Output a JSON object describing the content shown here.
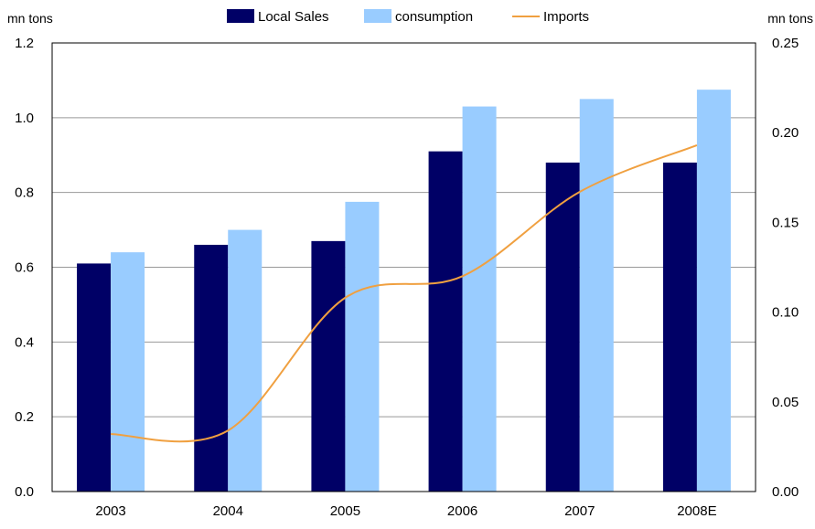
{
  "chart_data": {
    "type": "bar",
    "categories": [
      "2003",
      "2004",
      "2005",
      "2006",
      "2007",
      "2008E"
    ],
    "series": [
      {
        "name": "Local Sales",
        "type": "bar",
        "axis": "left",
        "color": "#000066",
        "values": [
          0.61,
          0.66,
          0.67,
          0.91,
          0.88,
          0.88
        ]
      },
      {
        "name": "consumption",
        "type": "bar",
        "axis": "left",
        "color": "#99ccff",
        "values": [
          0.64,
          0.7,
          0.775,
          1.03,
          1.05,
          1.075
        ]
      },
      {
        "name": "Imports",
        "type": "line",
        "axis": "right",
        "color": "#f0a040",
        "values": [
          0.032,
          0.034,
          0.108,
          0.12,
          0.167,
          0.193
        ]
      }
    ],
    "left_axis": {
      "label": "mn tons",
      "range": [
        0,
        1.2
      ],
      "ticks": [
        "0.0",
        "0.2",
        "0.4",
        "0.6",
        "0.8",
        "1.0",
        "1.2"
      ]
    },
    "right_axis": {
      "label": "mn tons",
      "range": [
        0,
        0.25
      ],
      "ticks": [
        "0.00",
        "0.05",
        "0.10",
        "0.15",
        "0.20",
        "0.25"
      ]
    },
    "grid": true,
    "legend_position": "top-center"
  }
}
